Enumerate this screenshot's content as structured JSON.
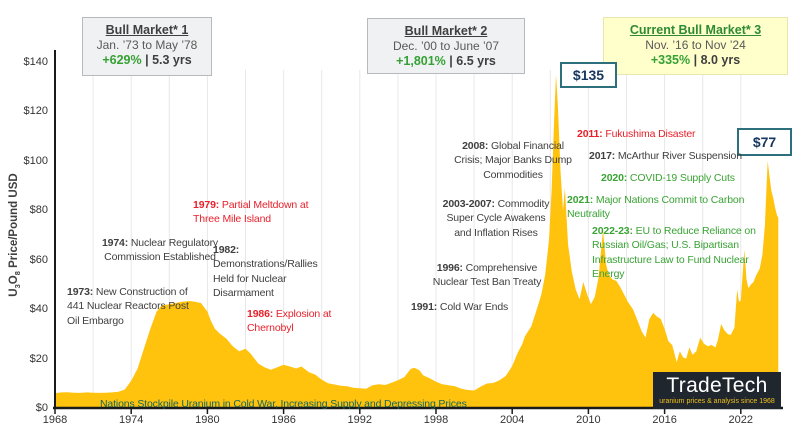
{
  "title_boxes": [
    {
      "title": "Bull Market* 1",
      "period": "Jan. ’73 to May ’78",
      "gain": "+629%",
      "sep": "|",
      "duration": "5.3 yrs"
    },
    {
      "title": "Bull Market* 2",
      "period": "Dec. ’00 to June ’07",
      "gain": "+1,801%",
      "sep": "|",
      "duration": "6.5 yrs"
    },
    {
      "title": "Current Bull Market* 3",
      "period": "Nov. ’16 to Nov ’24",
      "gain": "+335%",
      "sep": "|",
      "duration": "8.0 yrs"
    }
  ],
  "price_callouts": [
    {
      "label": "$135"
    },
    {
      "label": "$77"
    }
  ],
  "annotations": [
    {
      "prefix": "1974:",
      "text": "Nuclear Regulatory Commission Established"
    },
    {
      "prefix": "1973:",
      "text": "New Construction of 441 Nuclear Reactors Post Oil Embargo"
    },
    {
      "prefix": "1979:",
      "text": "Partial Meltdown at Three Mile Island"
    },
    {
      "prefix": "1982:",
      "text": "Demonstrations/Rallies Held for Nuclear Disarmament"
    },
    {
      "prefix": "1986:",
      "text": "Explosion at Chernobyl"
    },
    {
      "prefix": "1991:",
      "text": "Cold War Ends"
    },
    {
      "prefix": "1996:",
      "text": "Comprehensive Nuclear Test Ban Treaty"
    },
    {
      "prefix": "2003-2007:",
      "text": "Commodity Super Cycle Awakens and Inflation Rises"
    },
    {
      "prefix": "2008:",
      "text": "Global Financial Crisis; Major Banks Dump Commodities"
    },
    {
      "prefix": "2011:",
      "text": "Fukushima Disaster"
    },
    {
      "prefix": "2017:",
      "text": "McArthur River Suspension"
    },
    {
      "prefix": "2020:",
      "text": "COVID-19 Supply Cuts"
    },
    {
      "prefix": "2021:",
      "text": "Major Nations Commit to Carbon Neutrality"
    },
    {
      "prefix": "2022-23:",
      "text": "EU to Reduce Reliance on Russian Oil/Gas; U.S. Bipartisan Infrastructure Law to Fund Nuclear Energy"
    },
    {
      "prefix": "",
      "text": "Nations Stockpile Uranium in Cold War, Increasing Supply and Depressing Prices"
    }
  ],
  "watermark": {
    "name": "TradeTech",
    "tagline": "uranium prices & analysis since 1968"
  },
  "chart_data": {
    "type": "area",
    "ylabel": "U3O8 Price/Pound USD",
    "ylabel_parts": {
      "a": "U",
      "a_sub": "3",
      "b": "O",
      "b_sub": "8",
      "rest": " Price/Pound USD"
    },
    "x_ticks": [
      "1968",
      "1974",
      "1980",
      "1986",
      "1992",
      "1998",
      "2004",
      "2010",
      "2016",
      "2022"
    ],
    "y_ticks": [
      "$0",
      "$20",
      "$40",
      "$60",
      "$80",
      "$100",
      "$120",
      "$140"
    ],
    "xlim": [
      1968,
      2025.2
    ],
    "ylim": [
      0,
      140
    ],
    "grid": "vertical gridlines every 3 years",
    "grid_color": "#E8E8E8",
    "area_color": "#FFC20D",
    "series": [
      {
        "name": "U3O8 spot price (USD/lb)",
        "points": [
          [
            1968,
            6
          ],
          [
            1968.5,
            6.3
          ],
          [
            1969,
            6.4
          ],
          [
            1969.5,
            6.2
          ],
          [
            1970,
            6.1
          ],
          [
            1970.5,
            6.3
          ],
          [
            1971,
            6.2
          ],
          [
            1971.5,
            6.1
          ],
          [
            1972,
            6.2
          ],
          [
            1972.5,
            6.3
          ],
          [
            1973,
            6.6
          ],
          [
            1973.5,
            7.5
          ],
          [
            1974,
            11
          ],
          [
            1974.5,
            16
          ],
          [
            1975,
            24
          ],
          [
            1975.5,
            32
          ],
          [
            1976,
            39
          ],
          [
            1976.4,
            41.5
          ],
          [
            1977,
            42
          ],
          [
            1977.5,
            42.5
          ],
          [
            1978,
            43
          ],
          [
            1978.6,
            43.3
          ],
          [
            1979,
            43
          ],
          [
            1979.5,
            42.5
          ],
          [
            1980,
            39
          ],
          [
            1980.3,
            35
          ],
          [
            1980.6,
            32
          ],
          [
            1981,
            30
          ],
          [
            1981.5,
            28
          ],
          [
            1982,
            25
          ],
          [
            1982.5,
            23
          ],
          [
            1983,
            24
          ],
          [
            1983.4,
            22
          ],
          [
            1984,
            18
          ],
          [
            1984.5,
            16.5
          ],
          [
            1985,
            15.5
          ],
          [
            1985.5,
            16.5
          ],
          [
            1986,
            17.5
          ],
          [
            1986.5,
            16.8
          ],
          [
            1987,
            16
          ],
          [
            1987.4,
            16.8
          ],
          [
            1988,
            14.5
          ],
          [
            1988.5,
            13.5
          ],
          [
            1989,
            11.5
          ],
          [
            1989.5,
            10
          ],
          [
            1990,
            9.5
          ],
          [
            1990.5,
            9
          ],
          [
            1991,
            8.8
          ],
          [
            1991.5,
            8.2
          ],
          [
            1992,
            8
          ],
          [
            1992.5,
            7.8
          ],
          [
            1993,
            9.2
          ],
          [
            1993.5,
            9.6
          ],
          [
            1994,
            9.3
          ],
          [
            1994.5,
            10.2
          ],
          [
            1995,
            11.2
          ],
          [
            1995.5,
            12.5
          ],
          [
            1996,
            15.8
          ],
          [
            1996.3,
            16.3
          ],
          [
            1996.7,
            15.2
          ],
          [
            1997,
            13.2
          ],
          [
            1997.5,
            12
          ],
          [
            1998,
            10.6
          ],
          [
            1998.5,
            9.6
          ],
          [
            1999,
            9.2
          ],
          [
            1999.5,
            8.8
          ],
          [
            2000,
            7.8
          ],
          [
            2000.5,
            7.3
          ],
          [
            2001,
            7.1
          ],
          [
            2001.5,
            8.6
          ],
          [
            2002,
            9.9
          ],
          [
            2002.5,
            10.1
          ],
          [
            2003,
            11.2
          ],
          [
            2003.5,
            13
          ],
          [
            2004,
            17
          ],
          [
            2004.4,
            22
          ],
          [
            2004.8,
            26
          ],
          [
            2005,
            29
          ],
          [
            2005.5,
            33
          ],
          [
            2006,
            41
          ],
          [
            2006.3,
            46
          ],
          [
            2006.6,
            54
          ],
          [
            2006.9,
            68
          ],
          [
            2007.1,
            88
          ],
          [
            2007.3,
            116
          ],
          [
            2007.45,
            135
          ],
          [
            2007.6,
            122
          ],
          [
            2007.8,
            96
          ],
          [
            2008,
            80
          ],
          [
            2008.15,
            89
          ],
          [
            2008.4,
            66
          ],
          [
            2008.7,
            55
          ],
          [
            2009,
            48
          ],
          [
            2009.3,
            44
          ],
          [
            2009.6,
            51
          ],
          [
            2009.9,
            46
          ],
          [
            2010.2,
            42
          ],
          [
            2010.5,
            45
          ],
          [
            2010.8,
            53
          ],
          [
            2011,
            64
          ],
          [
            2011.15,
            72
          ],
          [
            2011.25,
            66
          ],
          [
            2011.4,
            58
          ],
          [
            2011.6,
            54
          ],
          [
            2011.9,
            52
          ],
          [
            2012.2,
            51.5
          ],
          [
            2012.5,
            49
          ],
          [
            2012.8,
            46
          ],
          [
            2013.1,
            43
          ],
          [
            2013.5,
            40
          ],
          [
            2013.9,
            35
          ],
          [
            2014.2,
            31
          ],
          [
            2014.5,
            28.5
          ],
          [
            2014.8,
            36
          ],
          [
            2015.1,
            38.5
          ],
          [
            2015.4,
            37
          ],
          [
            2015.7,
            36
          ],
          [
            2016,
            32
          ],
          [
            2016.3,
            27
          ],
          [
            2016.6,
            25.5
          ],
          [
            2016.95,
            18.5
          ],
          [
            2017.2,
            23
          ],
          [
            2017.45,
            20.5
          ],
          [
            2017.7,
            20
          ],
          [
            2017.95,
            24.5
          ],
          [
            2018.2,
            21.5
          ],
          [
            2018.5,
            23
          ],
          [
            2018.8,
            28.5
          ],
          [
            2019.1,
            26
          ],
          [
            2019.4,
            25
          ],
          [
            2019.7,
            25.5
          ],
          [
            2020,
            24.5
          ],
          [
            2020.2,
            27.5
          ],
          [
            2020.45,
            34
          ],
          [
            2020.7,
            31.5
          ],
          [
            2020.95,
            30
          ],
          [
            2021.2,
            29.5
          ],
          [
            2021.5,
            32.5
          ],
          [
            2021.72,
            48
          ],
          [
            2021.85,
            43
          ],
          [
            2022,
            43.5
          ],
          [
            2022.2,
            58
          ],
          [
            2022.28,
            64
          ],
          [
            2022.45,
            52
          ],
          [
            2022.6,
            48.5
          ],
          [
            2022.8,
            50
          ],
          [
            2023,
            51
          ],
          [
            2023.2,
            53.5
          ],
          [
            2023.5,
            56.5
          ],
          [
            2023.7,
            62
          ],
          [
            2023.9,
            74
          ],
          [
            2024.05,
            92
          ],
          [
            2024.12,
            100
          ],
          [
            2024.25,
            94
          ],
          [
            2024.4,
            88
          ],
          [
            2024.55,
            85
          ],
          [
            2024.7,
            81
          ],
          [
            2024.85,
            78
          ],
          [
            2024.95,
            77
          ]
        ]
      }
    ]
  }
}
